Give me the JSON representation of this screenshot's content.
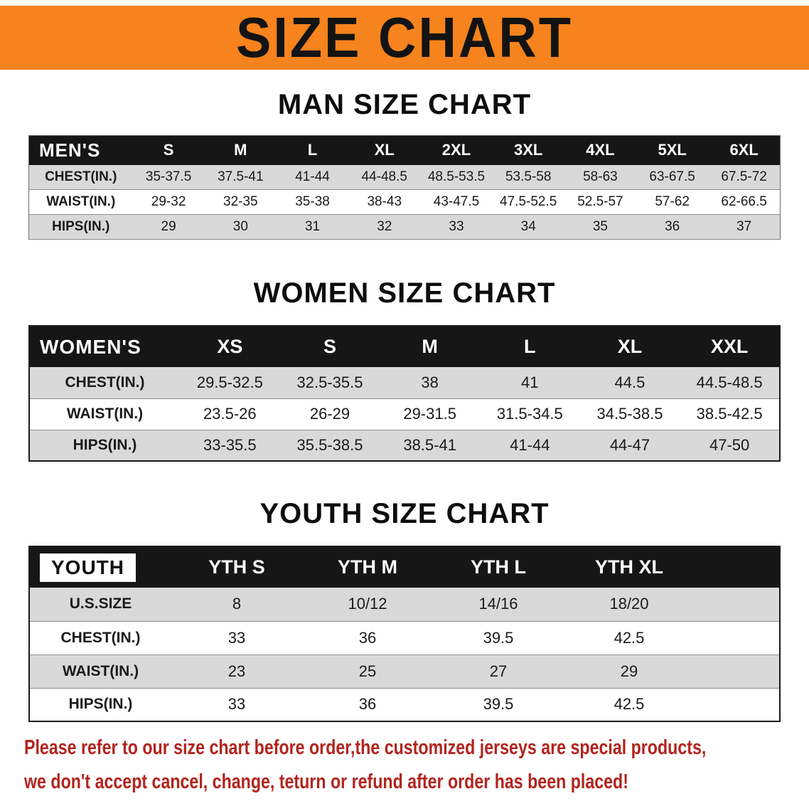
{
  "banner": {
    "title": "SIZE CHART"
  },
  "theme": {
    "banner_bg": "#f6831d",
    "table_header_bg": "#161616",
    "row_stripe": "#d9d9d9",
    "note_color": "#b2241e"
  },
  "sections": [
    {
      "key": "men",
      "heading": "MAN SIZE CHART",
      "table": {
        "group_label": "MEN'S",
        "columns": [
          "S",
          "M",
          "L",
          "XL",
          "2XL",
          "3XL",
          "4XL",
          "5XL",
          "6XL"
        ],
        "rows": [
          {
            "label": "CHEST(IN.)",
            "values": [
              "35-37.5",
              "37.5-41",
              "41-44",
              "44-48.5",
              "48.5-53.5",
              "53.5-58",
              "58-63",
              "63-67.5",
              "67.5-72"
            ]
          },
          {
            "label": "WAIST(IN.)",
            "values": [
              "29-32",
              "32-35",
              "35-38",
              "38-43",
              "43-47.5",
              "47.5-52.5",
              "52.5-57",
              "57-62",
              "62-66.5"
            ]
          },
          {
            "label": "HIPS(IN.)",
            "values": [
              "29",
              "30",
              "31",
              "32",
              "33",
              "34",
              "35",
              "36",
              "37"
            ]
          }
        ]
      }
    },
    {
      "key": "women",
      "heading": "WOMEN SIZE CHART",
      "table": {
        "group_label": "WOMEN'S",
        "columns": [
          "XS",
          "S",
          "M",
          "L",
          "XL",
          "XXL"
        ],
        "rows": [
          {
            "label": "CHEST(IN.)",
            "values": [
              "29.5-32.5",
              "32.5-35.5",
              "38",
              "41",
              "44.5",
              "44.5-48.5"
            ]
          },
          {
            "label": "WAIST(IN.)",
            "values": [
              "23.5-26",
              "26-29",
              "29-31.5",
              "31.5-34.5",
              "34.5-38.5",
              "38.5-42.5"
            ]
          },
          {
            "label": "HIPS(IN.)",
            "values": [
              "33-35.5",
              "35.5-38.5",
              "38.5-41",
              "41-44",
              "44-47",
              "47-50"
            ]
          }
        ]
      }
    },
    {
      "key": "youth",
      "heading": "YOUTH SIZE CHART",
      "table": {
        "group_label": "YOUTH",
        "columns": [
          "YTH S",
          "YTH M",
          "YTH L",
          "YTH XL"
        ],
        "rows": [
          {
            "label": "U.S.SIZE",
            "values": [
              "8",
              "10/12",
              "14/16",
              "18/20"
            ]
          },
          {
            "label": "CHEST(IN.)",
            "values": [
              "33",
              "36",
              "39.5",
              "42.5"
            ]
          },
          {
            "label": "WAIST(IN.)",
            "values": [
              "23",
              "25",
              "27",
              "29"
            ]
          },
          {
            "label": "HIPS(IN.)",
            "values": [
              "33",
              "36",
              "39.5",
              "42.5"
            ]
          }
        ]
      }
    }
  ],
  "footer": {
    "lines": [
      "Please refer to our size chart before order,the customized jerseys are special products,",
      "we don't accept cancel, change, teturn or refund after order has been placed!"
    ]
  }
}
